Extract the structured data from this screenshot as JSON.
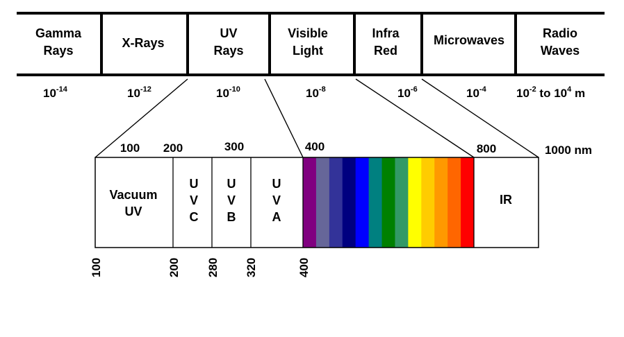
{
  "spectrum_bands": [
    {
      "line1": "Gamma",
      "line2": "Rays"
    },
    {
      "line1": "X-Rays",
      "line2": ""
    },
    {
      "line1": "UV",
      "line2": "Rays"
    },
    {
      "line1": "Visible",
      "line2": "Light"
    },
    {
      "line1": "Infra",
      "line2": "Red"
    },
    {
      "line1": "Microwaves",
      "line2": ""
    },
    {
      "line1": "Radio",
      "line2": "Waves"
    }
  ],
  "wavelengths": [
    {
      "base": "10",
      "exp": "-14"
    },
    {
      "base": "10",
      "exp": "-12"
    },
    {
      "base": "10",
      "exp": "-10"
    },
    {
      "base": "10",
      "exp": "-8"
    },
    {
      "base": "10",
      "exp": "-6"
    },
    {
      "base": "10",
      "exp": "-4"
    }
  ],
  "radio_range": {
    "base1": "10",
    "exp1": "-2",
    "mid": " to ",
    "base2": "10",
    "exp2": "4",
    "unit": " m"
  },
  "top_scale": [
    "100",
    "200",
    "300",
    "400",
    "800",
    "1000 nm"
  ],
  "regions": {
    "vacuum_uv": [
      "Vacuum",
      "UV"
    ],
    "uvc": [
      "U",
      "V",
      "C"
    ],
    "uvb": [
      "U",
      "V",
      "B"
    ],
    "uva": [
      "U",
      "V",
      "A"
    ],
    "ir": "IR"
  },
  "bottom_scale": [
    "100",
    "200",
    "280",
    "320",
    "400"
  ],
  "visible_colors": [
    "#800080",
    "#666699",
    "#333399",
    "#000080",
    "#0000ff",
    "#008080",
    "#008000",
    "#339966",
    "#ffff00",
    "#ffcc00",
    "#ff9900",
    "#ff6600",
    "#ff0000"
  ]
}
